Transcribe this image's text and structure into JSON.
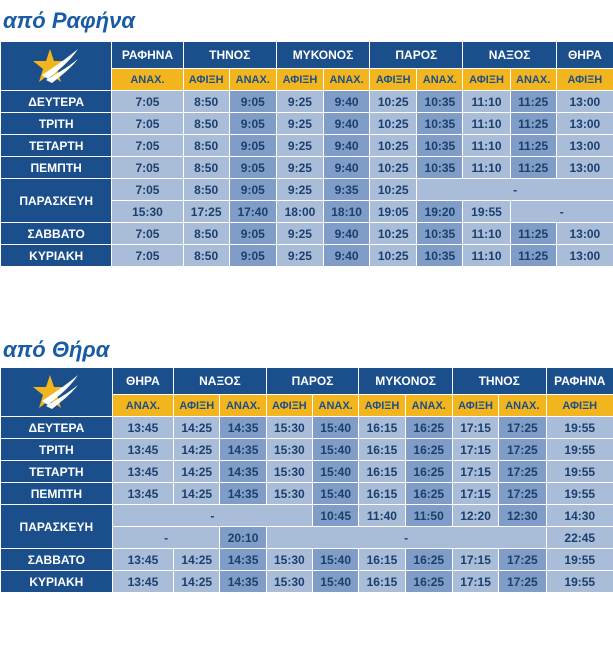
{
  "table1": {
    "title": "από Ραφήνα",
    "headers": [
      "ΡΑΦΗΝΑ",
      "ΤΗΝΟΣ",
      "ΜΥΚΟΝΟΣ",
      "ΠΑΡΟΣ",
      "ΝΑΞΟΣ",
      "ΘΗΡΑ"
    ],
    "sub": [
      "ΑΝΑΧ.",
      "ΑΦΙΞΗ",
      "ΑΝΑΧ.",
      "ΑΦΙΞΗ",
      "ΑΝΑΧ.",
      "ΑΦΙΞΗ",
      "ΑΝΑΧ.",
      "ΑΦΙΞΗ",
      "ΑΝΑΧ.",
      "ΑΦΙΞΗ"
    ],
    "rows": [
      {
        "day": "ΔΕΥΤΕΡΑ",
        "t": [
          "7:05",
          "8:50",
          "9:05",
          "9:25",
          "9:40",
          "10:25",
          "10:35",
          "11:10",
          "11:25",
          "13:00"
        ]
      },
      {
        "day": "ΤΡΙΤΗ",
        "t": [
          "7:05",
          "8:50",
          "9:05",
          "9:25",
          "9:40",
          "10:25",
          "10:35",
          "11:10",
          "11:25",
          "13:00"
        ]
      },
      {
        "day": "ΤΕΤΑΡΤΗ",
        "t": [
          "7:05",
          "8:50",
          "9:05",
          "9:25",
          "9:40",
          "10:25",
          "10:35",
          "11:10",
          "11:25",
          "13:00"
        ]
      },
      {
        "day": "ΠΕΜΠΤΗ",
        "t": [
          "7:05",
          "8:50",
          "9:05",
          "9:25",
          "9:40",
          "10:25",
          "10:35",
          "11:10",
          "11:25",
          "13:00"
        ]
      }
    ],
    "friday": {
      "day": "ΠΑΡΑΣΚΕΥΗ",
      "r1": [
        "7:05",
        "8:50",
        "9:05",
        "9:25",
        "9:35",
        "10:25"
      ],
      "r1_dash": "-",
      "r2": [
        "15:30",
        "17:25",
        "17:40",
        "18:00",
        "18:10",
        "19:05",
        "19:20",
        "19:55"
      ],
      "r2_dash": "-"
    },
    "rows2": [
      {
        "day": "ΣΑΒΒΑΤΟ",
        "t": [
          "7:05",
          "8:50",
          "9:05",
          "9:25",
          "9:40",
          "10:25",
          "10:35",
          "11:10",
          "11:25",
          "13:00"
        ]
      },
      {
        "day": "ΚΥΡΙΑΚΗ",
        "t": [
          "7:05",
          "8:50",
          "9:05",
          "9:25",
          "9:40",
          "10:25",
          "10:35",
          "11:10",
          "11:25",
          "13:00"
        ]
      }
    ]
  },
  "table2": {
    "title": "από Θήρα",
    "headers": [
      "ΘΗΡΑ",
      "ΝΑΞΟΣ",
      "ΠΑΡΟΣ",
      "ΜΥΚΟΝΟΣ",
      "ΤΗΝΟΣ",
      "ΡΑΦΗΝΑ"
    ],
    "sub": [
      "ΑΝΑΧ.",
      "ΑΦΙΞΗ",
      "ΑΝΑΧ.",
      "ΑΦΙΞΗ",
      "ΑΝΑΧ.",
      "ΑΦΙΞΗ",
      "ΑΝΑΧ.",
      "ΑΦΙΞΗ",
      "ΑΝΑΧ.",
      "ΑΦΙΞΗ"
    ],
    "rows": [
      {
        "day": "ΔΕΥΤΕΡΑ",
        "t": [
          "13:45",
          "14:25",
          "14:35",
          "15:30",
          "15:40",
          "16:15",
          "16:25",
          "17:15",
          "17:25",
          "19:55"
        ]
      },
      {
        "day": "ΤΡΙΤΗ",
        "t": [
          "13:45",
          "14:25",
          "14:35",
          "15:30",
          "15:40",
          "16:15",
          "16:25",
          "17:15",
          "17:25",
          "19:55"
        ]
      },
      {
        "day": "ΤΕΤΑΡΤΗ",
        "t": [
          "13:45",
          "14:25",
          "14:35",
          "15:30",
          "15:40",
          "16:15",
          "16:25",
          "17:15",
          "17:25",
          "19:55"
        ]
      },
      {
        "day": "ΠΕΜΠΤΗ",
        "t": [
          "13:45",
          "14:25",
          "14:35",
          "15:30",
          "15:40",
          "16:15",
          "16:25",
          "17:15",
          "17:25",
          "19:55"
        ]
      }
    ],
    "friday": {
      "day": "ΠΑΡΑΣΚΕΥΗ",
      "r1_dash": "-",
      "r1": [
        "10:45",
        "11:40",
        "11:50",
        "12:20",
        "12:30",
        "14:30"
      ],
      "r2_dash1": "-",
      "r2_a": "20:10",
      "r2_dash2": "-",
      "r2_b": "22:45"
    },
    "rows2": [
      {
        "day": "ΣΑΒΒΑΤΟ",
        "t": [
          "13:45",
          "14:25",
          "14:35",
          "15:30",
          "15:40",
          "16:15",
          "16:25",
          "17:15",
          "17:25",
          "19:55"
        ]
      },
      {
        "day": "ΚΥΡΙΑΚΗ",
        "t": [
          "13:45",
          "14:25",
          "14:35",
          "15:30",
          "15:40",
          "16:15",
          "16:25",
          "17:15",
          "17:25",
          "19:55"
        ]
      }
    ]
  },
  "colors": {
    "navy": "#1b4f8c",
    "gold": "#f2b51d",
    "cell_light": "#a9bcd8",
    "cell_dark": "#7f9dc6",
    "title": "#1a5ba6"
  },
  "icons": {
    "logo": "star-swoosh-logo-icon"
  }
}
